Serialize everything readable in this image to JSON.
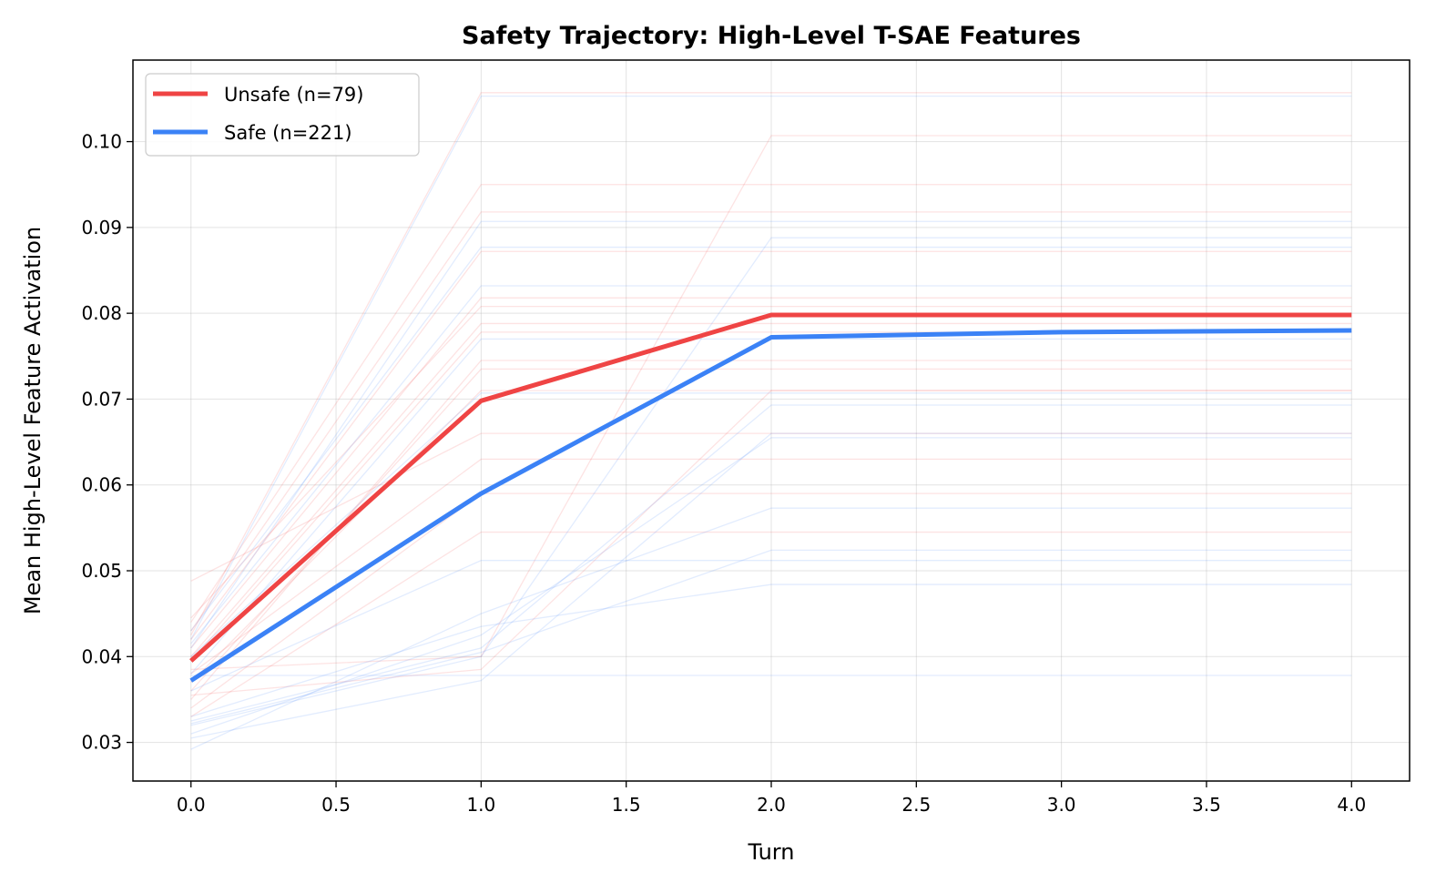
{
  "chart_data": {
    "type": "line",
    "title": "Safety Trajectory: High-Level T-SAE Features",
    "xlabel": "Turn",
    "ylabel": "Mean High-Level Feature Activation",
    "xlim": [
      -0.2,
      4.2
    ],
    "ylim": [
      0.0255,
      0.1095
    ],
    "xticks": [
      "0.0",
      "0.5",
      "1.0",
      "1.5",
      "2.0",
      "2.5",
      "3.0",
      "3.5",
      "4.0"
    ],
    "yticks": [
      "0.03",
      "0.04",
      "0.05",
      "0.06",
      "0.07",
      "0.08",
      "0.09",
      "0.10"
    ],
    "grid": true,
    "legend_position": "top-left",
    "x": [
      0,
      1,
      2,
      3,
      4
    ],
    "series": [
      {
        "name": "Unsafe (n=79)",
        "color": "#ef4444",
        "values": [
          0.0395,
          0.0698,
          0.0798,
          0.0798,
          0.0798
        ]
      },
      {
        "name": "Safe (n=221)",
        "color": "#3b82f6",
        "values": [
          0.0372,
          0.059,
          0.0772,
          0.0778,
          0.078
        ]
      }
    ],
    "individual_traces": {
      "unsafe": [
        [
          0.0425,
          0.1057,
          0.1057,
          0.1057,
          0.1057
        ],
        [
          0.0385,
          0.04,
          0.1007,
          0.1007,
          0.1007
        ],
        [
          0.044,
          0.095,
          0.095,
          0.095,
          0.095
        ],
        [
          0.043,
          0.0918,
          0.0918,
          0.0918,
          0.0918
        ],
        [
          0.042,
          0.0872,
          0.0872,
          0.0872,
          0.0872
        ],
        [
          0.041,
          0.0818,
          0.0818,
          0.0818,
          0.0818
        ],
        [
          0.0445,
          0.0808,
          0.0808,
          0.0808,
          0.0808
        ],
        [
          0.04,
          0.0788,
          0.0788,
          0.0788,
          0.0788
        ],
        [
          0.0395,
          0.0778,
          0.0778,
          0.0778,
          0.0778
        ],
        [
          0.035,
          0.0745,
          0.0745,
          0.0745,
          0.0745
        ],
        [
          0.036,
          0.0735,
          0.0735,
          0.0735,
          0.0735
        ],
        [
          0.037,
          0.071,
          0.071,
          0.071,
          0.071
        ],
        [
          0.0488,
          0.066,
          0.066,
          0.066,
          0.066
        ],
        [
          0.038,
          0.063,
          0.063,
          0.063,
          0.063
        ],
        [
          0.034,
          0.059,
          0.059,
          0.059,
          0.059
        ],
        [
          0.033,
          0.0545,
          0.0545,
          0.0545,
          0.0545
        ],
        [
          0.0355,
          0.0385,
          0.071,
          0.071,
          0.071
        ]
      ],
      "safe": [
        [
          0.042,
          0.1053,
          0.1053,
          0.1053,
          0.1053
        ],
        [
          0.041,
          0.0907,
          0.0907,
          0.0907,
          0.0907
        ],
        [
          0.032,
          0.04,
          0.0888,
          0.0888,
          0.0888
        ],
        [
          0.043,
          0.0877,
          0.0877,
          0.0877,
          0.0877
        ],
        [
          0.0415,
          0.0832,
          0.0832,
          0.0832,
          0.0832
        ],
        [
          0.038,
          0.077,
          0.077,
          0.077,
          0.077
        ],
        [
          0.04,
          0.0707,
          0.0707,
          0.0707,
          0.0707
        ],
        [
          0.0325,
          0.041,
          0.0693,
          0.0693,
          0.0693
        ],
        [
          0.031,
          0.0425,
          0.0655,
          0.0655,
          0.0655
        ],
        [
          0.0292,
          0.045,
          0.0573,
          0.0573,
          0.0573
        ],
        [
          0.0322,
          0.0405,
          0.0524,
          0.0524,
          0.0524
        ],
        [
          0.036,
          0.0512,
          0.0512,
          0.0512,
          0.0512
        ],
        [
          0.033,
          0.0435,
          0.0484,
          0.0484,
          0.0484
        ],
        [
          0.0378,
          0.0378,
          0.0378,
          0.0378,
          0.0378
        ],
        [
          0.0305,
          0.0372,
          0.066,
          0.066,
          0.066
        ]
      ]
    }
  }
}
